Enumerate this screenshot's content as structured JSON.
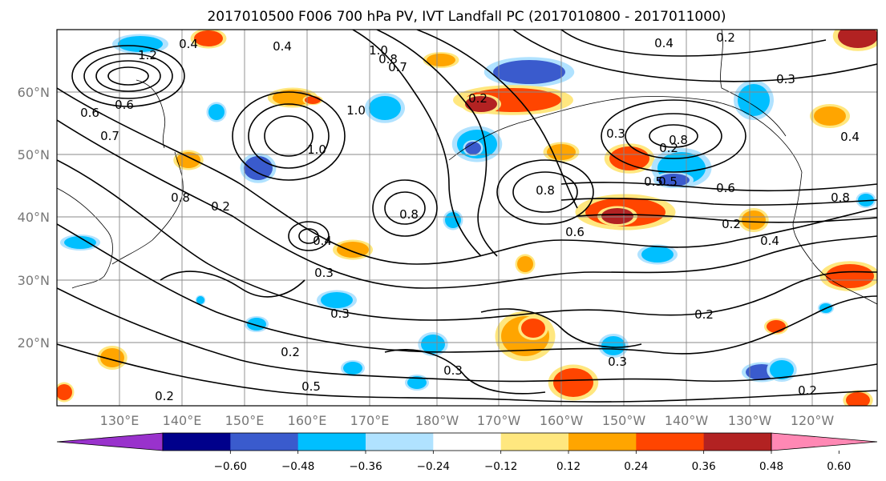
{
  "title": "2017010500 F006 700 hPa PV, IVT Landfall PC (2017010800 - 2017011000)",
  "axes": {
    "lat_labels": [
      "60°N",
      "50°N",
      "40°N",
      "30°N",
      "20°N"
    ],
    "lon_labels": [
      "130°E",
      "140°E",
      "150°E",
      "160°E",
      "170°E",
      "180°W",
      "170°W",
      "160°W",
      "150°W",
      "140°W",
      "130°W",
      "120°W"
    ]
  },
  "colorbar": {
    "ticks": [
      "−0.60",
      "−0.48",
      "−0.36",
      "−0.24",
      "−0.12",
      "0.12",
      "0.24",
      "0.36",
      "0.48",
      "0.60"
    ],
    "colors": [
      "#9932cc",
      "#00008b",
      "#3a5bcd",
      "#00bfff",
      "#b0e2ff",
      "#ffffff",
      "#ffe77f",
      "#ffa500",
      "#ff4500",
      "#b22222",
      "#ff88b4"
    ],
    "extend": "both"
  },
  "contour_labels": [
    "0.4",
    "1.0",
    "0.8",
    "0.7",
    "0.2",
    "0.4",
    "0.2",
    "0.3",
    "0.5",
    "0.6",
    "0.8",
    "0.6",
    "0.3",
    "0.2",
    "0.8",
    "0.8",
    "0.4",
    "0.3",
    "0.3",
    "0.2",
    "0.2",
    "0.3",
    "0.3",
    "0.2",
    "0.4",
    "0.2",
    "0.4",
    "1.0",
    "0.6",
    "0.5",
    "1.2",
    "0.7",
    "0.6",
    "0.2",
    "0.5",
    "0.8",
    "0.8",
    "1.0",
    "0.2",
    "0.4"
  ]
}
